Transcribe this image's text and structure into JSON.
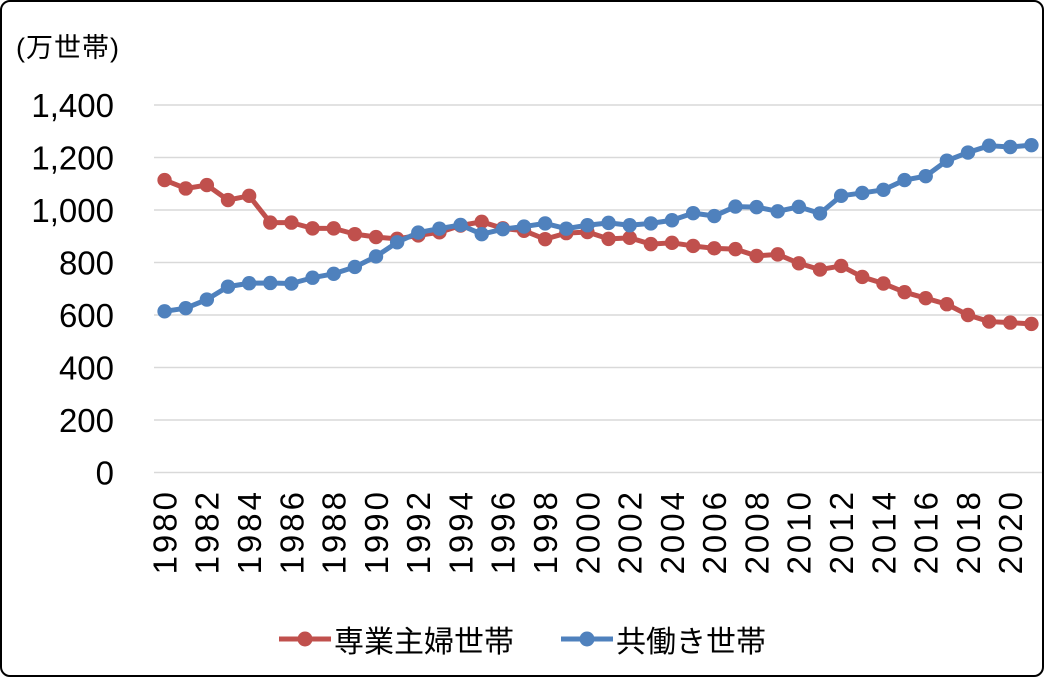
{
  "chart_data": {
    "type": "line",
    "title": "",
    "unit_label": "(万世帯)",
    "xlabel": "",
    "ylabel": "",
    "x": [
      1980,
      1981,
      1982,
      1983,
      1984,
      1985,
      1986,
      1987,
      1988,
      1989,
      1990,
      1991,
      1992,
      1993,
      1994,
      1995,
      1996,
      1997,
      1998,
      1999,
      2000,
      2001,
      2002,
      2003,
      2004,
      2005,
      2006,
      2007,
      2008,
      2009,
      2010,
      2011,
      2012,
      2013,
      2014,
      2015,
      2016,
      2017,
      2018,
      2019,
      2020,
      2021
    ],
    "xtick_labels": [
      "1980",
      "1982",
      "1984",
      "1986",
      "1988",
      "1990",
      "1992",
      "1994",
      "1996",
      "1998",
      "2000",
      "2002",
      "2004",
      "2006",
      "2008",
      "2010",
      "2012",
      "2014",
      "2016",
      "2018",
      "2020"
    ],
    "ytick_labels": [
      "0",
      "200",
      "400",
      "600",
      "800",
      "1,000",
      "1,200",
      "1,400"
    ],
    "ylim": [
      0,
      1400
    ],
    "ytick_step": 200,
    "grid": true,
    "legend_position": "bottom",
    "gridline_color": "#d9d9d9",
    "text_color": "#000000",
    "series": [
      {
        "name": "専業主婦世帯",
        "color": "#c0504d",
        "values": [
          1114,
          1082,
          1095,
          1038,
          1054,
          952,
          952,
          930,
          930,
          908,
          897,
          890,
          903,
          915,
          941,
          955,
          930,
          921,
          889,
          912,
          916,
          890,
          894,
          870,
          875,
          863,
          854,
          851,
          825,
          831,
          797,
          773,
          787,
          745,
          720,
          687,
          664,
          641,
          600,
          575,
          571,
          566
        ]
      },
      {
        "name": "共働き世帯",
        "color": "#4f81bd",
        "values": [
          614,
          626,
          659,
          708,
          721,
          722,
          720,
          742,
          757,
          783,
          823,
          877,
          914,
          929,
          943,
          908,
          927,
          937,
          949,
          929,
          942,
          951,
          942,
          949,
          961,
          988,
          977,
          1013,
          1011,
          995,
          1012,
          987,
          1054,
          1065,
          1077,
          1114,
          1129,
          1188,
          1219,
          1245,
          1240,
          1247
        ]
      }
    ]
  }
}
